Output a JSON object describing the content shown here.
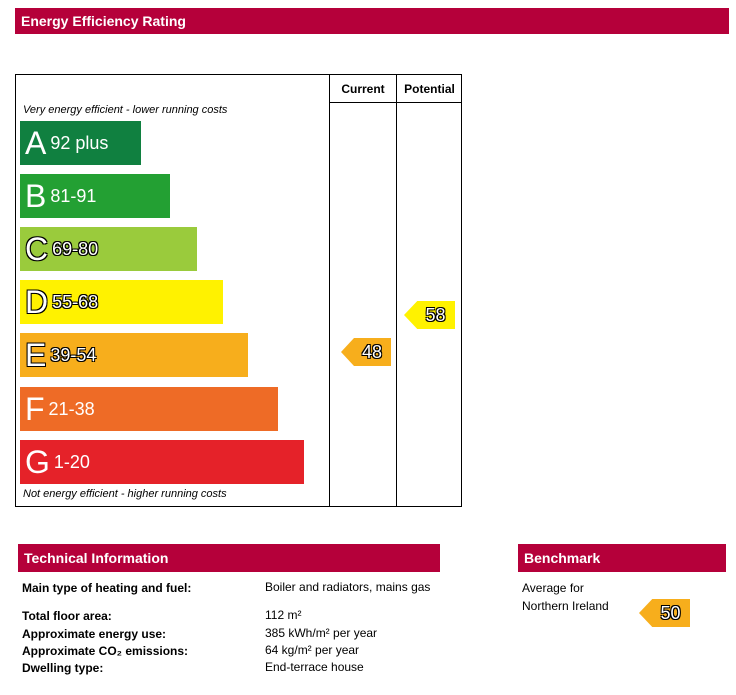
{
  "title": "Energy Efficiency Rating",
  "chart": {
    "col_current": "Current",
    "col_potential": "Potential",
    "top_note": "Very energy efficient - lower running costs",
    "bottom_note": "Not energy efficient - higher running costs",
    "bands": [
      {
        "letter": "A",
        "range": "92 plus",
        "color": "#108040"
      },
      {
        "letter": "B",
        "range": "81-91",
        "color": "#23a033"
      },
      {
        "letter": "C",
        "range": "69-80",
        "color": "#9acb3c"
      },
      {
        "letter": "D",
        "range": "55-68",
        "color": "#fff200"
      },
      {
        "letter": "E",
        "range": "39-54",
        "color": "#f7ae1c"
      },
      {
        "letter": "F",
        "range": "21-38",
        "color": "#ee6b26"
      },
      {
        "letter": "G",
        "range": "1-20",
        "color": "#e52229"
      }
    ],
    "current": {
      "value": "48",
      "color": "#f7ae1c"
    },
    "potential": {
      "value": "58",
      "color": "#fff200"
    }
  },
  "technical": {
    "heading": "Technical Information",
    "rows": [
      {
        "label": "Main type of heating and fuel:",
        "value": "Boiler and radiators, mains gas"
      },
      {
        "label": "Total floor area:",
        "value": "112 m²"
      },
      {
        "label": "Approximate energy use:",
        "value": "385 kWh/m² per year"
      },
      {
        "label": "Approximate CO₂ emissions:",
        "value": "64 kg/m² per year"
      },
      {
        "label": "Dwelling type:",
        "value": "End-terrace house"
      }
    ]
  },
  "benchmark": {
    "heading": "Benchmark",
    "line1": "Average for",
    "line2": "Northern Ireland",
    "value": "50",
    "color": "#f7ae1c"
  }
}
